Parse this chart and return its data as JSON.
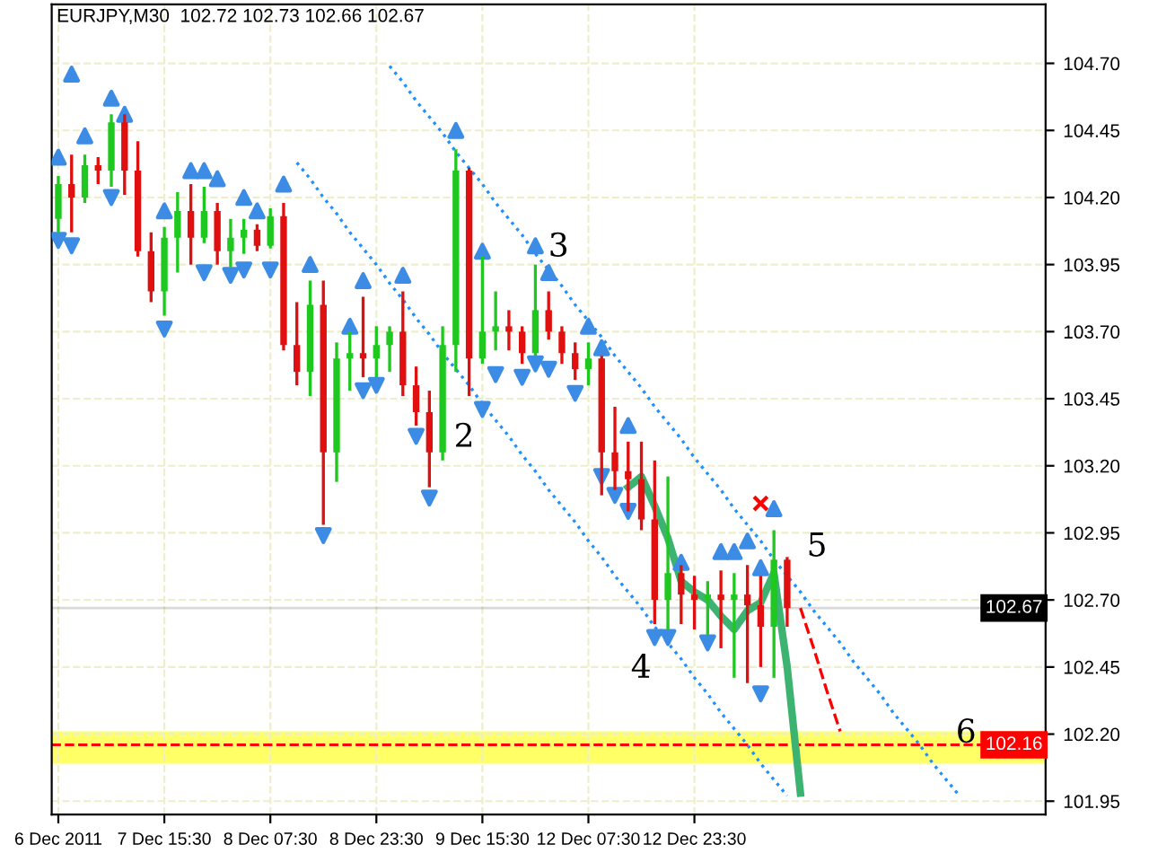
{
  "chart_data": {
    "type": "candlestick",
    "title": "EURJPY,M30  102.72 102.73 102.66 102.67",
    "categories": [
      "6 Dec 2011",
      null,
      null,
      null,
      null,
      null,
      null,
      null,
      "7 Dec 15:30",
      null,
      null,
      null,
      null,
      null,
      null,
      null,
      "8 Dec 07:30",
      null,
      null,
      null,
      null,
      null,
      null,
      null,
      "8 Dec 23:30",
      null,
      null,
      null,
      null,
      null,
      null,
      null,
      "9 Dec 15:30",
      null,
      null,
      null,
      null,
      null,
      null,
      null,
      "12 Dec 07:30",
      null,
      null,
      null,
      null,
      null,
      null,
      null,
      "12 Dec 23:30",
      null,
      null,
      null,
      null,
      null,
      null,
      null,
      null,
      null,
      null,
      null,
      null,
      null,
      null,
      null,
      null,
      null,
      null,
      null,
      null,
      null,
      null,
      null,
      null,
      null,
      null
    ],
    "ohlc": [
      [
        104.12,
        104.28,
        104.07,
        104.25
      ],
      [
        104.25,
        104.36,
        104.07,
        104.2
      ],
      [
        104.2,
        104.36,
        104.18,
        104.32
      ],
      [
        104.32,
        104.35,
        104.25,
        104.3
      ],
      [
        104.3,
        104.51,
        104.24,
        104.48
      ],
      [
        104.48,
        104.51,
        104.21,
        104.3
      ],
      [
        104.3,
        104.41,
        103.98,
        104.0
      ],
      [
        104.0,
        104.07,
        103.81,
        103.85
      ],
      [
        103.85,
        104.09,
        103.76,
        104.05
      ],
      [
        104.05,
        104.22,
        103.92,
        104.15
      ],
      [
        104.15,
        104.25,
        103.95,
        104.05
      ],
      [
        104.05,
        104.24,
        104.03,
        104.15
      ],
      [
        104.15,
        104.18,
        103.95,
        104.0
      ],
      [
        104.0,
        104.12,
        103.94,
        104.05
      ],
      [
        104.05,
        104.12,
        103.99,
        104.08
      ],
      [
        104.08,
        104.1,
        104.0,
        104.02
      ],
      [
        104.02,
        104.16,
        104.01,
        104.13
      ],
      [
        104.13,
        104.18,
        103.63,
        103.65
      ],
      [
        103.65,
        103.81,
        103.5,
        103.55
      ],
      [
        103.55,
        103.89,
        103.46,
        103.8
      ],
      [
        103.8,
        103.89,
        102.98,
        103.25
      ],
      [
        103.25,
        103.66,
        103.14,
        103.6
      ],
      [
        103.6,
        103.7,
        103.48,
        103.62
      ],
      [
        103.62,
        103.83,
        103.53,
        103.6
      ],
      [
        103.6,
        103.72,
        103.53,
        103.65
      ],
      [
        103.65,
        103.72,
        103.55,
        103.7
      ],
      [
        103.7,
        103.85,
        103.46,
        103.5
      ],
      [
        103.5,
        103.57,
        103.35,
        103.4
      ],
      [
        103.4,
        103.48,
        103.12,
        103.25
      ],
      [
        103.25,
        103.72,
        103.22,
        103.65
      ],
      [
        103.65,
        104.38,
        103.55,
        104.3
      ],
      [
        104.3,
        104.31,
        103.46,
        103.6
      ],
      [
        103.6,
        103.98,
        103.58,
        103.7
      ],
      [
        103.7,
        103.85,
        103.63,
        103.72
      ],
      [
        103.72,
        103.78,
        103.63,
        103.7
      ],
      [
        103.7,
        103.72,
        103.58,
        103.62
      ],
      [
        103.62,
        103.95,
        103.61,
        103.78
      ],
      [
        103.78,
        103.85,
        103.67,
        103.7
      ],
      [
        103.7,
        103.72,
        103.58,
        103.62
      ],
      [
        103.62,
        103.66,
        103.52,
        103.56
      ],
      [
        103.56,
        103.66,
        103.5,
        103.6
      ],
      [
        103.6,
        103.61,
        103.09,
        103.25
      ],
      [
        103.25,
        103.42,
        103.11,
        103.18
      ],
      [
        103.18,
        103.29,
        103.03,
        103.15
      ],
      [
        103.15,
        103.29,
        102.96,
        103.0
      ],
      [
        103.0,
        103.22,
        102.61,
        102.7
      ],
      [
        102.7,
        103.16,
        102.59,
        102.8
      ],
      [
        102.8,
        102.83,
        102.61,
        102.72
      ],
      [
        102.72,
        102.79,
        102.59,
        102.7
      ],
      [
        102.7,
        102.77,
        102.57,
        102.72
      ],
      [
        102.72,
        102.81,
        102.52,
        102.7
      ],
      [
        102.7,
        102.8,
        102.41,
        102.72
      ],
      [
        102.72,
        102.83,
        102.39,
        102.68
      ],
      [
        102.68,
        102.79,
        102.45,
        102.6
      ],
      [
        102.6,
        102.96,
        102.41,
        102.85
      ],
      [
        102.85,
        102.86,
        102.6,
        102.67
      ],
      null,
      null,
      null,
      null,
      null,
      null,
      null,
      null,
      null,
      null,
      null,
      null,
      null,
      null,
      null,
      null,
      null,
      null,
      null
    ],
    "colors": [
      "#1ec81e",
      "#e01010",
      "#1ec81e",
      "#e01010",
      "#1ec81e",
      "#e01010",
      "#e01010",
      "#e01010",
      "#1ec81e",
      "#1ec81e",
      "#e01010",
      "#1ec81e",
      "#e01010",
      "#1ec81e",
      "#1ec81e",
      "#e01010",
      "#1ec81e",
      "#e01010",
      "#e01010",
      "#1ec81e",
      "#e01010",
      "#1ec81e",
      "#1ec81e",
      "#e01010",
      "#1ec81e",
      "#1ec81e",
      "#e01010",
      "#e01010",
      "#e01010",
      "#1ec81e",
      "#1ec81e",
      "#e01010",
      "#1ec81e",
      "#1ec81e",
      "#e01010",
      "#e01010",
      "#1ec81e",
      "#e01010",
      "#e01010",
      "#e01010",
      "#1ec81e",
      "#e01010",
      "#e01010",
      "#e01010",
      "#e01010",
      "#e01010",
      "#1ec81e",
      "#e01010",
      "#e01010",
      "#1ec81e",
      "#e01010",
      "#1ec81e",
      "#e01010",
      "#e01010",
      "#1ec81e",
      "#e01010",
      null,
      null,
      null,
      null,
      null,
      null,
      null,
      null,
      null,
      null,
      null,
      null,
      null,
      null,
      null,
      null,
      null,
      null,
      null
    ],
    "series": [
      {
        "type": "line",
        "color": "#3cb371",
        "line_style": "solid",
        "values": [
          null,
          null,
          null,
          null,
          null,
          null,
          null,
          null,
          null,
          null,
          null,
          null,
          null,
          null,
          null,
          null,
          null,
          null,
          null,
          null,
          null,
          null,
          null,
          null,
          null,
          null,
          null,
          null,
          null,
          null,
          null,
          null,
          null,
          null,
          null,
          null,
          null,
          null,
          null,
          null,
          null,
          null,
          null,
          103.12,
          103.16,
          103.05,
          102.93,
          102.77,
          102.73,
          102.7,
          102.64,
          102.59,
          102.66,
          102.69,
          102.8,
          102.45,
          101.98,
          null,
          null,
          null,
          null,
          null,
          null,
          null,
          null,
          null,
          null,
          null,
          null,
          null,
          null,
          null,
          null,
          null,
          null
        ]
      },
      {
        "type": "line",
        "color": "#1e90ff",
        "line_style": "dotted",
        "values": [
          null,
          null,
          null,
          null,
          null,
          null,
          null,
          null,
          null,
          null,
          null,
          null,
          null,
          null,
          null,
          null,
          null,
          null,
          null,
          null,
          null,
          null,
          null,
          null,
          null,
          104.69,
          104.63,
          104.56,
          104.5,
          104.44,
          104.37,
          104.31,
          104.25,
          104.18,
          104.12,
          104.06,
          103.99,
          103.93,
          103.87,
          103.8,
          103.74,
          103.68,
          103.61,
          103.55,
          103.49,
          103.42,
          103.36,
          103.3,
          103.23,
          103.17,
          103.11,
          103.04,
          102.98,
          102.92,
          102.85,
          102.79,
          102.73,
          102.66,
          102.6,
          102.54,
          102.47,
          102.41,
          102.35,
          102.28,
          102.22,
          102.16,
          102.09,
          102.03,
          101.97,
          null,
          null,
          null,
          null,
          null,
          null
        ]
      },
      {
        "type": "line",
        "color": "#1e90ff",
        "line_style": "dotted",
        "values": [
          null,
          null,
          null,
          null,
          null,
          null,
          null,
          null,
          null,
          null,
          null,
          null,
          null,
          null,
          null,
          null,
          null,
          null,
          104.33,
          104.27,
          104.2,
          104.14,
          104.07,
          104.01,
          103.95,
          103.88,
          103.82,
          103.75,
          103.69,
          103.62,
          103.56,
          103.5,
          103.43,
          103.37,
          103.31,
          103.24,
          103.18,
          103.11,
          103.05,
          102.99,
          102.92,
          102.86,
          102.79,
          102.73,
          102.67,
          102.6,
          102.54,
          102.48,
          102.41,
          102.35,
          102.28,
          102.22,
          102.16,
          102.09,
          102.03,
          101.97,
          null,
          null,
          null,
          null,
          null,
          null,
          null,
          null,
          null,
          null,
          null,
          null,
          null,
          null,
          null,
          null,
          null,
          null,
          null
        ]
      },
      {
        "type": "scatter",
        "color": "#3c8ce6",
        "marker": "triangle",
        "values": [
          104.35,
          104.66,
          104.43,
          null,
          104.57,
          104.51,
          null,
          null,
          104.15,
          null,
          104.3,
          104.3,
          104.27,
          null,
          104.2,
          104.15,
          null,
          104.25,
          null,
          103.95,
          null,
          null,
          103.72,
          103.89,
          null,
          null,
          103.91,
          null,
          null,
          null,
          104.45,
          null,
          104.0,
          null,
          null,
          null,
          104.02,
          103.92,
          null,
          null,
          103.72,
          103.64,
          null,
          103.35,
          null,
          null,
          null,
          102.84,
          null,
          null,
          102.88,
          102.88,
          102.92,
          102.82,
          103.04,
          null,
          null,
          null,
          null,
          null,
          null,
          null,
          null,
          null,
          null,
          null,
          null,
          null,
          null,
          null,
          null,
          null,
          null,
          null,
          null
        ]
      },
      {
        "type": "scatter",
        "color": "#3c8ce6",
        "marker": "triangle_down",
        "values": [
          104.04,
          104.02,
          null,
          null,
          104.2,
          null,
          null,
          null,
          103.71,
          null,
          null,
          103.92,
          null,
          103.91,
          103.93,
          null,
          103.93,
          null,
          null,
          null,
          102.94,
          null,
          null,
          103.48,
          103.5,
          null,
          null,
          103.31,
          103.08,
          null,
          null,
          null,
          103.41,
          103.54,
          null,
          103.53,
          103.58,
          103.56,
          null,
          103.47,
          null,
          103.16,
          103.09,
          103.03,
          null,
          102.56,
          102.56,
          null,
          null,
          102.54,
          null,
          null,
          null,
          102.35,
          null,
          null,
          null,
          null,
          null,
          null,
          null,
          null,
          null,
          null,
          null,
          null,
          null,
          null,
          null,
          null,
          null,
          null,
          null,
          null,
          null
        ]
      },
      {
        "type": "scatter",
        "color": "#ff0000",
        "marker": "cross",
        "values": [
          null,
          null,
          null,
          null,
          null,
          null,
          null,
          null,
          null,
          null,
          null,
          null,
          null,
          null,
          null,
          null,
          null,
          null,
          null,
          null,
          null,
          null,
          null,
          null,
          null,
          null,
          null,
          null,
          null,
          null,
          null,
          null,
          null,
          null,
          null,
          null,
          null,
          null,
          null,
          null,
          null,
          null,
          null,
          null,
          null,
          null,
          null,
          null,
          null,
          null,
          null,
          null,
          null,
          103.06,
          null,
          null,
          null,
          null,
          null,
          null,
          null,
          null,
          null,
          null,
          null,
          null,
          null,
          null,
          null,
          null,
          null,
          null,
          null,
          null,
          null
        ]
      },
      {
        "type": "line",
        "color": "#ff0000",
        "line_style": "dashed",
        "values": [
          null,
          null,
          null,
          null,
          null,
          null,
          null,
          null,
          null,
          null,
          null,
          null,
          null,
          null,
          null,
          null,
          null,
          null,
          null,
          null,
          null,
          null,
          null,
          null,
          null,
          null,
          null,
          null,
          null,
          null,
          null,
          null,
          null,
          null,
          null,
          null,
          null,
          null,
          null,
          null,
          null,
          null,
          null,
          null,
          null,
          null,
          null,
          null,
          null,
          null,
          null,
          null,
          null,
          null,
          null,
          null,
          102.67,
          102.52,
          102.36,
          102.21,
          null,
          null,
          null,
          null,
          null,
          null,
          null,
          null,
          null,
          null,
          null,
          null,
          null,
          null,
          null
        ]
      }
    ],
    "ref_lines": [
      {
        "axis": "y",
        "value": 102.67,
        "label": "102.67",
        "color": "#000000",
        "line_style": "solid"
      },
      {
        "axis": "y",
        "value": 102.16,
        "label": "102.16",
        "color": "#ff0000",
        "line_style": "dashed"
      }
    ],
    "bands": [
      {
        "axis": "y",
        "from": 102.09,
        "to": 102.21,
        "color": "#ffff66"
      }
    ],
    "annotations": [
      "2",
      "3",
      "4",
      "5",
      "6"
    ],
    "ylim": [
      101.9,
      104.92
    ],
    "yticks": [
      {
        "value": 101.95,
        "label": "101.95"
      },
      {
        "value": 102.2,
        "label": "102.20"
      },
      {
        "value": 102.45,
        "label": "102.45"
      },
      {
        "value": 102.7,
        "label": "102.70"
      },
      {
        "value": 102.95,
        "label": "102.95"
      },
      {
        "value": 103.2,
        "label": "103.20"
      },
      {
        "value": 103.45,
        "label": "103.45"
      },
      {
        "value": 103.7,
        "label": "103.70"
      },
      {
        "value": 103.95,
        "label": "103.95"
      },
      {
        "value": 104.2,
        "label": "104.20"
      },
      {
        "value": 104.45,
        "label": "104.45"
      },
      {
        "value": 104.7,
        "label": "104.70"
      }
    ],
    "grid": true
  }
}
